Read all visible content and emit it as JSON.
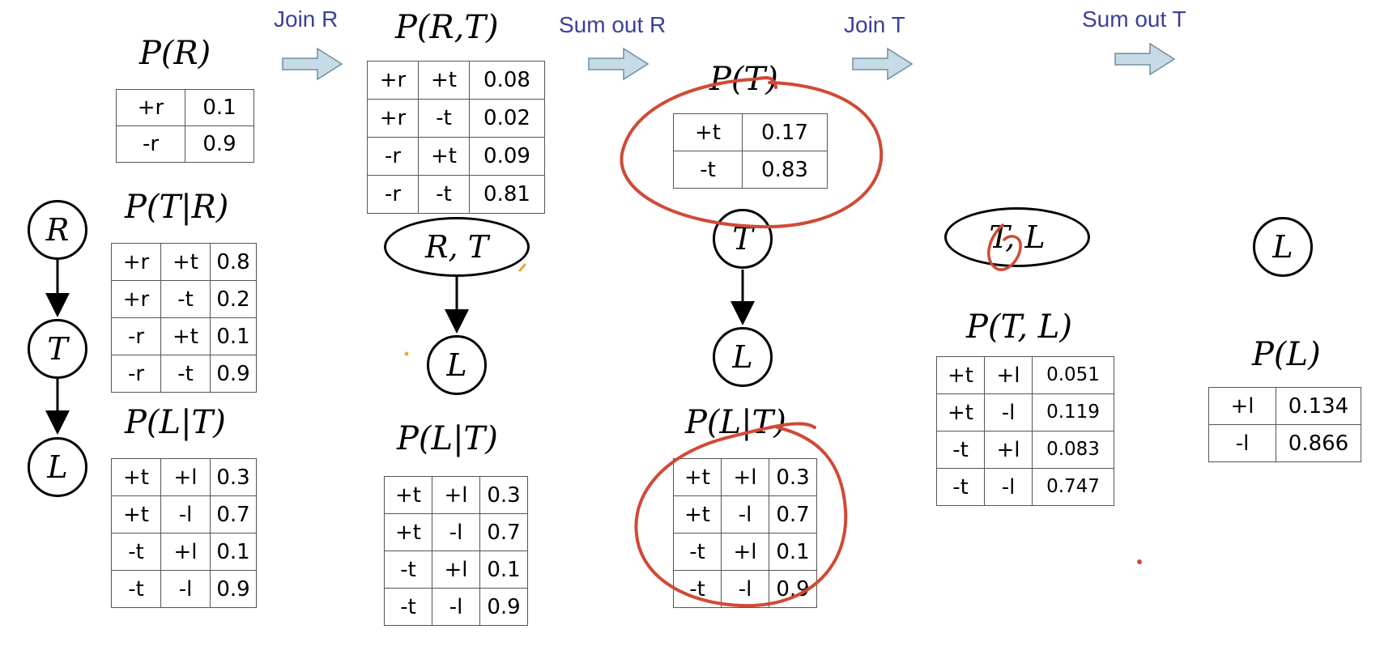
{
  "steps": [
    "Join R",
    "Sum out R",
    "Join T",
    "Sum out T"
  ],
  "columns": {
    "c1": {
      "pr_label": "P(R)",
      "pr_rows": [
        [
          "+r",
          "0.1"
        ],
        [
          "-r",
          "0.9"
        ]
      ],
      "ptr_label": "P(T|R)",
      "ptr_rows": [
        [
          "+r",
          "+t",
          "0.8"
        ],
        [
          "+r",
          "-t",
          "0.2"
        ],
        [
          "-r",
          "+t",
          "0.1"
        ],
        [
          "-r",
          "-t",
          "0.9"
        ]
      ],
      "plt_label": "P(L|T)",
      "plt_rows": [
        [
          "+t",
          "+l",
          "0.3"
        ],
        [
          "+t",
          "-l",
          "0.7"
        ],
        [
          "-t",
          "+l",
          "0.1"
        ],
        [
          "-t",
          "-l",
          "0.9"
        ]
      ],
      "nodes": [
        "R",
        "T",
        "L"
      ]
    },
    "c2": {
      "prt_label": "P(R,T)",
      "prt_rows": [
        [
          "+r",
          "+t",
          "0.08"
        ],
        [
          "+r",
          "-t",
          "0.02"
        ],
        [
          "-r",
          "+t",
          "0.09"
        ],
        [
          "-r",
          "-t",
          "0.81"
        ]
      ],
      "nodes": [
        "R, T",
        "L"
      ],
      "plt_label": "P(L|T)",
      "plt_rows": [
        [
          "+t",
          "+l",
          "0.3"
        ],
        [
          "+t",
          "-l",
          "0.7"
        ],
        [
          "-t",
          "+l",
          "0.1"
        ],
        [
          "-t",
          "-l",
          "0.9"
        ]
      ]
    },
    "c3": {
      "pt_label": "P(T)",
      "pt_rows": [
        [
          "+t",
          "0.17"
        ],
        [
          "-t",
          "0.83"
        ]
      ],
      "nodes": [
        "T",
        "L"
      ],
      "plt_label": "P(L|T)",
      "plt_rows": [
        [
          "+t",
          "+l",
          "0.3"
        ],
        [
          "+t",
          "-l",
          "0.7"
        ],
        [
          "-t",
          "+l",
          "0.1"
        ],
        [
          "-t",
          "-l",
          "0.9"
        ]
      ]
    },
    "c4": {
      "nodes": [
        "T, L"
      ],
      "ptl_label": "P(T, L)",
      "ptl_rows": [
        [
          "+t",
          "+l",
          "0.051"
        ],
        [
          "+t",
          "-l",
          "0.119"
        ],
        [
          "-t",
          "+l",
          "0.083"
        ],
        [
          "-t",
          "-l",
          "0.747"
        ]
      ]
    },
    "c5": {
      "nodes": [
        "L"
      ],
      "pl_label": "P(L)",
      "pl_rows": [
        [
          "+l",
          "0.134"
        ],
        [
          "-l",
          "0.866"
        ]
      ]
    }
  },
  "colors": {
    "step_text": "#3b3f9a",
    "arrow_fill": "#c7dbe6",
    "arrow_stroke": "#6f8fa0",
    "annotation": "#d04a35"
  }
}
